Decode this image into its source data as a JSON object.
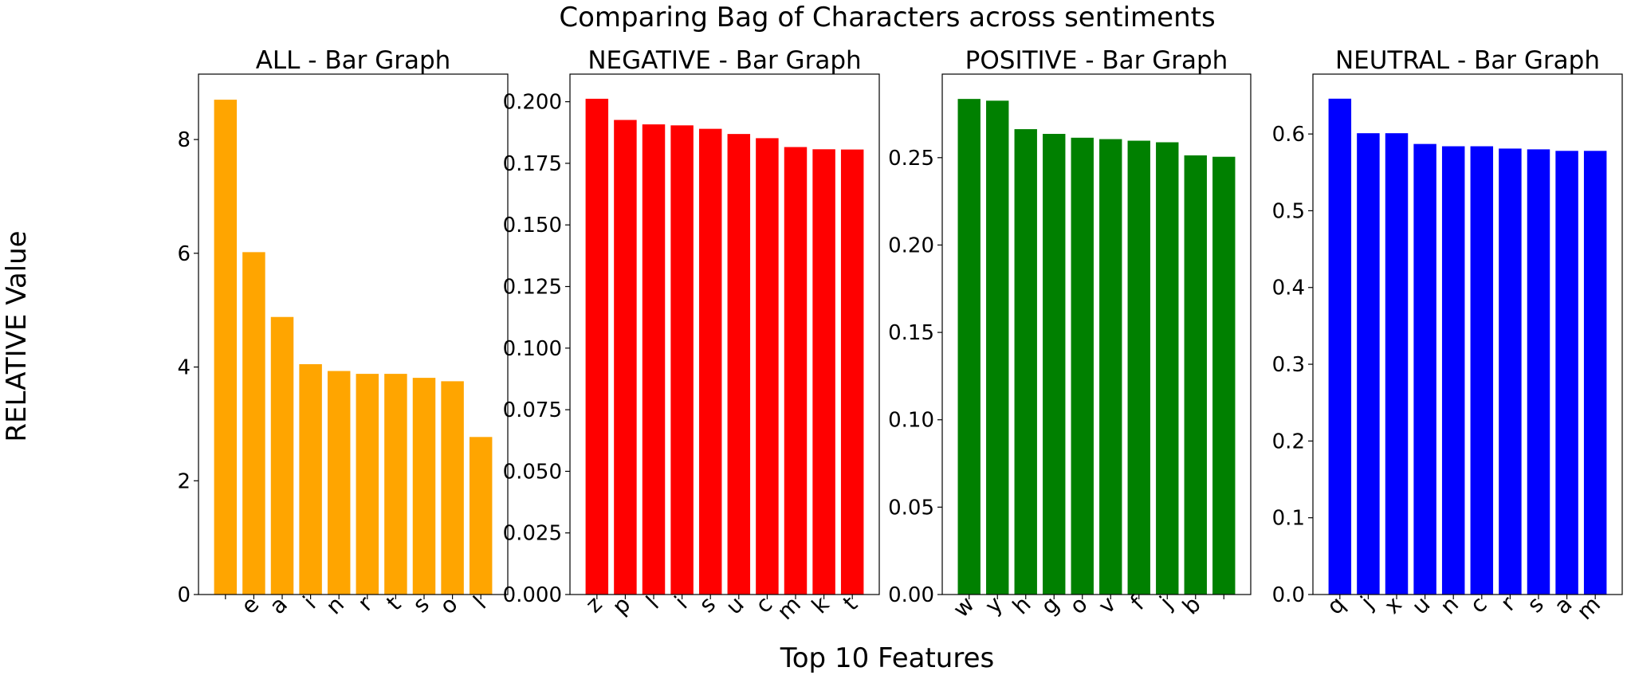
{
  "figure": {
    "suptitle": "Comparing Bag of Characters across sentiments",
    "ylabel": "RELATIVE Value",
    "xlabel": "Top 10 Features"
  },
  "chart_data": [
    {
      "type": "bar",
      "title": "ALL - Bar Graph",
      "color": "#ffa500",
      "categories": [
        " ",
        "e",
        "a",
        "i",
        "n",
        "r",
        "t",
        "s",
        "o",
        "l"
      ],
      "values": [
        8.7,
        6.02,
        4.88,
        4.05,
        3.93,
        3.88,
        3.88,
        3.81,
        3.75,
        2.77
      ],
      "ylim": [
        0,
        9.15
      ],
      "yticks": [
        0,
        2,
        4,
        6,
        8
      ],
      "ytick_labels": [
        "0",
        "2",
        "4",
        "6",
        "8"
      ]
    },
    {
      "type": "bar",
      "title": "NEGATIVE - Bar Graph",
      "color": "#ff0000",
      "categories": [
        "z",
        "p",
        "l",
        "i",
        "s",
        "u",
        "c",
        "m",
        "k",
        "t"
      ],
      "values": [
        0.2012,
        0.1926,
        0.1908,
        0.1904,
        0.189,
        0.1869,
        0.1852,
        0.1816,
        0.1807,
        0.1806
      ],
      "ylim": [
        0,
        0.2112
      ],
      "yticks": [
        0,
        0.025,
        0.05,
        0.075,
        0.1,
        0.125,
        0.15,
        0.175,
        0.2
      ],
      "ytick_labels": [
        "0.000",
        "0.025",
        "0.050",
        "0.075",
        "0.100",
        "0.125",
        "0.150",
        "0.175",
        "0.200"
      ]
    },
    {
      "type": "bar",
      "title": "POSITIVE - Bar Graph",
      "color": "#008000",
      "categories": [
        "w",
        "y",
        "h",
        "g",
        "o",
        "v",
        "f",
        "j",
        "b",
        " "
      ],
      "values": [
        0.2836,
        0.2826,
        0.2663,
        0.2636,
        0.2614,
        0.2606,
        0.2597,
        0.2588,
        0.2513,
        0.2505
      ],
      "ylim": [
        0,
        0.2978
      ],
      "yticks": [
        0,
        0.05,
        0.1,
        0.15,
        0.2,
        0.25
      ],
      "ytick_labels": [
        "0.00",
        "0.05",
        "0.10",
        "0.15",
        "0.20",
        "0.25"
      ]
    },
    {
      "type": "bar",
      "title": "NEUTRAL - Bar Graph",
      "color": "#0000ff",
      "categories": [
        "q",
        "j",
        "x",
        "u",
        "n",
        "c",
        "r",
        "s",
        "a",
        "m"
      ],
      "values": [
        0.646,
        0.601,
        0.601,
        0.587,
        0.584,
        0.584,
        0.581,
        0.58,
        0.578,
        0.578
      ],
      "ylim": [
        0,
        0.678
      ],
      "yticks": [
        0,
        0.1,
        0.2,
        0.3,
        0.4,
        0.5,
        0.6
      ],
      "ytick_labels": [
        "0.0",
        "0.1",
        "0.2",
        "0.3",
        "0.4",
        "0.5",
        "0.6"
      ]
    }
  ]
}
